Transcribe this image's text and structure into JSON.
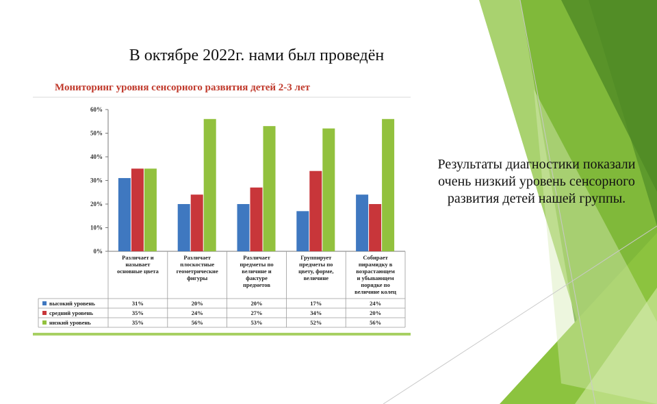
{
  "heading": "В октябре 2022г. нами был проведён",
  "result_text": "Результаты диагностики показали очень низкий уровень сенсорного развития детей нашей группы.",
  "colors": {
    "high": "#3f78c0",
    "mid": "#c8363a",
    "low": "#92c13e",
    "accent_dark": "#5e9a2c",
    "accent_light": "#a7d063"
  },
  "chart_data": {
    "type": "bar",
    "title": "Мониторинг уровня сенсорного развития детей 2-3 лет",
    "categories": [
      "Различает и называет основные цвета",
      "Различает плоскостные геометрические фигуры",
      "Различает предметы по величине и фактуре предметов",
      "Группирует предметы по цвету, форме, величине",
      "Собирает пирамидку в возрастающем и убывающем порядке по величине колец"
    ],
    "category_lines": [
      [
        "Различает и",
        "называет",
        "основные цвета"
      ],
      [
        "Различает",
        "плоскостные",
        "геометрические",
        "фигуры"
      ],
      [
        "Различает",
        "предметы по",
        "величине и",
        "фактуре",
        "предметов"
      ],
      [
        "Группирует",
        "предметы по",
        "цвету, форме,",
        "величине"
      ],
      [
        "Собирает",
        "пирамидку в",
        "возрастающем",
        "и убывающем",
        "порядке по",
        "величине колец"
      ]
    ],
    "series": [
      {
        "name": "высокий уровень",
        "values": [
          31,
          20,
          20,
          17,
          24
        ],
        "labels": [
          "31%",
          "20%",
          "20%",
          "17%",
          "24%"
        ],
        "color": "#3f78c0"
      },
      {
        "name": "средний уровень",
        "values": [
          35,
          24,
          27,
          34,
          20
        ],
        "labels": [
          "35%",
          "24%",
          "27%",
          "34%",
          "20%"
        ],
        "color": "#c8363a"
      },
      {
        "name": "низкий уровень",
        "values": [
          35,
          56,
          53,
          52,
          56
        ],
        "labels": [
          "35%",
          "56%",
          "53%",
          "52%",
          "56%"
        ],
        "color": "#92c13e"
      }
    ],
    "yticks": [
      "0%",
      "10%",
      "20%",
      "30%",
      "40%",
      "50%",
      "60%"
    ],
    "ylim": [
      0,
      60
    ],
    "grid": false,
    "legend": "data-table-below"
  }
}
